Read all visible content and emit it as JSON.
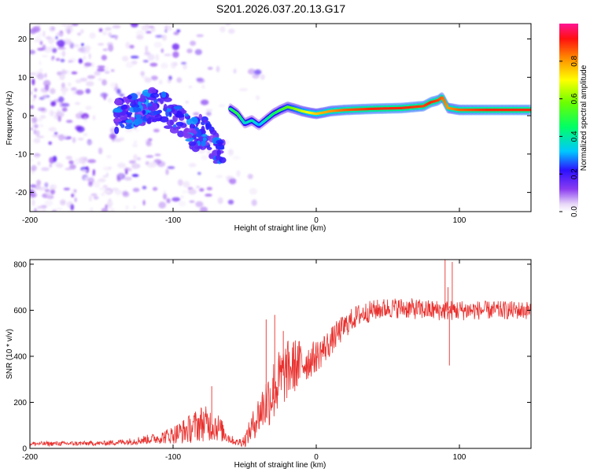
{
  "title": "S201.2026.037.20.13.G17",
  "chart_data": [
    {
      "type": "heatmap",
      "name": "spectrogram",
      "xlabel": "Height of straight line (km)",
      "ylabel": "Frequency (Hz)",
      "xlim": [
        -200,
        150
      ],
      "ylim": [
        -25,
        24
      ],
      "xticks": [
        -200,
        -100,
        0,
        100
      ],
      "yticks": [
        -20,
        -10,
        0,
        10,
        20
      ],
      "colorbar": {
        "label": "Normalized spectral amplitude",
        "range": [
          0,
          1
        ],
        "ticks": [
          0.0,
          0.2,
          0.4,
          0.6,
          0.8
        ]
      },
      "ridge": {
        "x": [
          -60,
          -55,
          -50,
          -45,
          -40,
          -35,
          -30,
          -25,
          -20,
          -15,
          -10,
          -5,
          0,
          5,
          10,
          20,
          40,
          60,
          75,
          80,
          85,
          88,
          92,
          100,
          120,
          150
        ],
        "y": [
          1.8,
          0.5,
          -2.0,
          -1.2,
          -2.5,
          -1.0,
          0.5,
          1.5,
          2.3,
          1.8,
          1.2,
          0.8,
          0.5,
          0.8,
          1.2,
          1.5,
          1.8,
          2.0,
          2.5,
          3.5,
          4.0,
          4.8,
          2.0,
          1.5,
          1.5,
          1.5
        ],
        "amplitude": [
          0.45,
          0.5,
          0.35,
          0.4,
          0.3,
          0.4,
          0.45,
          0.5,
          0.55,
          0.6,
          0.65,
          0.7,
          0.75,
          0.78,
          0.8,
          0.85,
          0.9,
          0.9,
          0.88,
          0.9,
          0.88,
          0.85,
          0.8,
          0.85,
          0.9,
          0.9
        ]
      },
      "scatter_band": {
        "x": [
          -140,
          -130,
          -120,
          -110,
          -100,
          -95,
          -90,
          -85,
          -80,
          -75,
          -70,
          -65
        ],
        "y": [
          0,
          1,
          2,
          3,
          0,
          -2,
          -3,
          -5,
          -4,
          -6,
          -8,
          -11
        ]
      }
    },
    {
      "type": "line",
      "name": "snr",
      "xlabel": "Height of straight line (km)",
      "ylabel": "SNR (10 * v/v)",
      "xlim": [
        -200,
        150
      ],
      "ylim": [
        0,
        820
      ],
      "xticks": [
        -200,
        -100,
        0,
        100
      ],
      "yticks": [
        0,
        200,
        400,
        600,
        800
      ],
      "color": "#e8312e",
      "envelope": {
        "x": [
          -200,
          -150,
          -130,
          -110,
          -100,
          -90,
          -80,
          -70,
          -60,
          -55,
          -50,
          -45,
          -40,
          -35,
          -30,
          -25,
          -20,
          -15,
          -10,
          -5,
          0,
          5,
          10,
          15,
          20,
          25,
          30,
          40,
          50,
          60,
          80,
          90,
          100,
          120,
          150
        ],
        "mean": [
          20,
          22,
          30,
          45,
          60,
          80,
          110,
          100,
          40,
          25,
          35,
          90,
          150,
          200,
          250,
          300,
          340,
          360,
          370,
          380,
          400,
          430,
          460,
          500,
          530,
          560,
          580,
          600,
          610,
          610,
          600,
          600,
          600,
          600,
          600
        ],
        "spread": [
          10,
          10,
          15,
          25,
          40,
          60,
          80,
          70,
          20,
          15,
          30,
          60,
          90,
          120,
          140,
          140,
          130,
          120,
          100,
          80,
          70,
          70,
          60,
          60,
          55,
          50,
          50,
          45,
          45,
          45,
          45,
          45,
          45,
          40,
          40
        ]
      },
      "spikes": [
        {
          "x": -73,
          "y": 270
        },
        {
          "x": -35,
          "y": 560
        },
        {
          "x": -29,
          "y": 580
        },
        {
          "x": -23,
          "y": 510
        },
        {
          "x": 90,
          "y": 820
        },
        {
          "x": 92,
          "y": 700
        },
        {
          "x": 93,
          "y": 360
        },
        {
          "x": 95,
          "y": 810
        }
      ]
    }
  ]
}
